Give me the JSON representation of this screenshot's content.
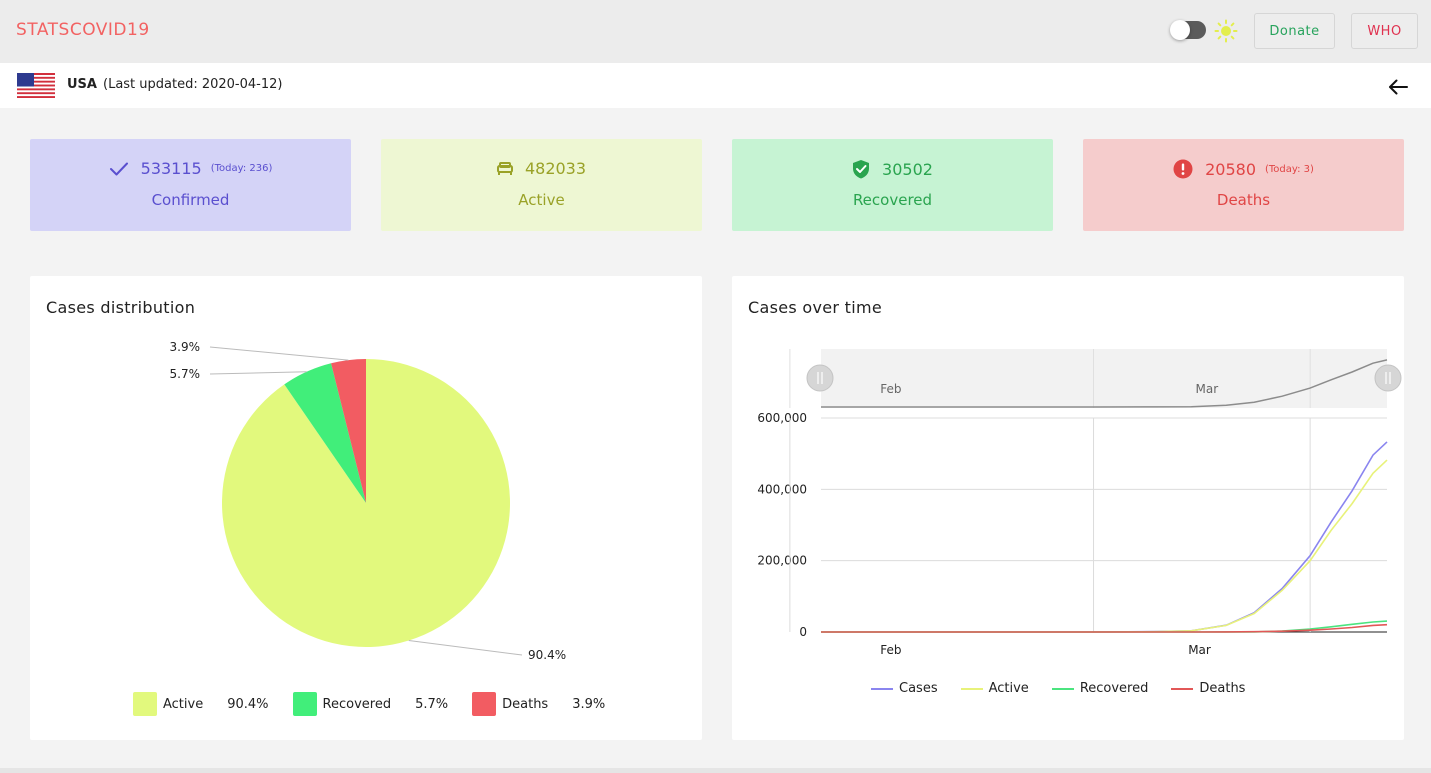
{
  "header": {
    "brand": "STATSCOVID19",
    "donate_label": "Donate",
    "who_label": "WHO",
    "theme_toggle_on": false
  },
  "country_bar": {
    "country": "USA",
    "last_updated": "(Last updated: 2020-04-12)"
  },
  "stats": {
    "confirmed": {
      "value": "533115",
      "today": "(Today: 236)",
      "label": "Confirmed"
    },
    "active": {
      "value": "482033",
      "label": "Active"
    },
    "recovered": {
      "value": "30502",
      "label": "Recovered"
    },
    "deaths": {
      "value": "20580",
      "today": "(Today: 3)",
      "label": "Deaths"
    }
  },
  "colors": {
    "active": "#e2f97d",
    "recovered": "#41ee7a",
    "deaths": "#f25c62",
    "cases_line": "#8a85ef",
    "active_line": "#e8f27a",
    "recovered_line": "#4be47f",
    "deaths_line": "#e25757",
    "navigator_line": "#8c8c8c",
    "brand": "#f26262"
  },
  "distribution": {
    "title": "Cases distribution",
    "legend": [
      {
        "name": "Active",
        "pct": "90.4%"
      },
      {
        "name": "Recovered",
        "pct": "5.7%"
      },
      {
        "name": "Deaths",
        "pct": "3.9%"
      }
    ]
  },
  "timeline": {
    "title": "Cases over time",
    "legend": [
      "Cases",
      "Active",
      "Recovered",
      "Deaths"
    ]
  },
  "chart_data": [
    {
      "type": "pie",
      "title": "Cases distribution",
      "categories": [
        "Active",
        "Recovered",
        "Deaths"
      ],
      "values": [
        90.4,
        5.7,
        3.9
      ],
      "data_labels": [
        "90.4%",
        "5.7%",
        "3.9%"
      ],
      "legend": "bottom"
    },
    {
      "type": "line",
      "title": "Cases over time",
      "x_ticks": [
        "Feb",
        "Mar"
      ],
      "y_ticks": [
        "0",
        "200,000",
        "400,000",
        "600,000"
      ],
      "ylim": [
        0,
        600000
      ],
      "xlim": [
        "2020-01-22",
        "2020-04-12"
      ],
      "grid": true,
      "legend": "bottom",
      "navigator": true,
      "x": [
        "2020-01-22",
        "2020-02-01",
        "2020-02-15",
        "2020-03-01",
        "2020-03-10",
        "2020-03-15",
        "2020-03-20",
        "2020-03-24",
        "2020-03-28",
        "2020-04-01",
        "2020-04-04",
        "2020-04-07",
        "2020-04-10",
        "2020-04-12"
      ],
      "series": [
        {
          "name": "Cases",
          "values": [
            1,
            8,
            15,
            75,
            1000,
            3500,
            19000,
            54000,
            122000,
            214000,
            308000,
            396000,
            496000,
            533115
          ]
        },
        {
          "name": "Active",
          "values": [
            1,
            8,
            12,
            60,
            950,
            3400,
            18500,
            52000,
            117000,
            200000,
            285000,
            360000,
            445000,
            482033
          ]
        },
        {
          "name": "Recovered",
          "values": [
            0,
            0,
            3,
            7,
            10,
            50,
            150,
            350,
            2600,
            8500,
            14600,
            21600,
            28000,
            30502
          ]
        },
        {
          "name": "Deaths",
          "values": [
            0,
            0,
            0,
            1,
            28,
            60,
            260,
            800,
            2200,
            5100,
            8400,
            12700,
            18600,
            20580
          ]
        }
      ]
    }
  ]
}
